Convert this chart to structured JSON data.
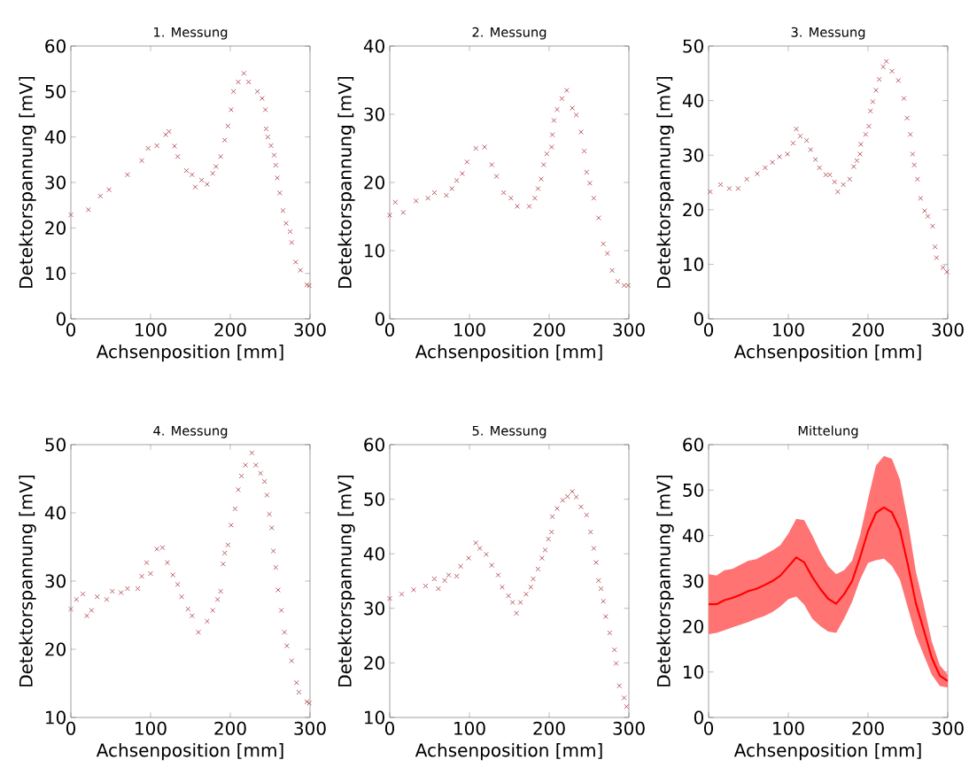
{
  "chart_data": [
    {
      "type": "scatter",
      "title": "1. Messung",
      "xlabel": "Achsenposition [mm]",
      "ylabel": "Detektorspannung [mV]",
      "marker": "cross",
      "xlim": [
        0,
        300
      ],
      "ylim": [
        0,
        60
      ],
      "xticks": [
        0,
        100,
        200,
        300
      ],
      "yticks": [
        0,
        10,
        20,
        30,
        40,
        50,
        60
      ],
      "series": [
        {
          "color": "#b8505a",
          "x": [
            0,
            22,
            37,
            48,
            71,
            89,
            97,
            108,
            119,
            123,
            130,
            134,
            145,
            152,
            156,
            164,
            171,
            178,
            182,
            188,
            193,
            197,
            201,
            204,
            210,
            217,
            223,
            234,
            240,
            244,
            245,
            247,
            251,
            255,
            257,
            259,
            262,
            266,
            270,
            275,
            277,
            282,
            288,
            296,
            299
          ],
          "values": [
            22.9,
            24,
            27,
            28.4,
            31.7,
            34.8,
            37.5,
            38.1,
            40.5,
            41.2,
            38,
            35.7,
            32.6,
            31.7,
            29,
            30.5,
            29.6,
            32,
            33.5,
            35.7,
            39.3,
            42.4,
            46,
            50,
            52.1,
            54,
            52.1,
            50,
            48.5,
            46,
            41.8,
            40,
            38.1,
            36,
            33.8,
            31,
            27.7,
            23.8,
            21,
            19.2,
            16.8,
            12.5,
            10.7,
            7.5,
            7.3
          ]
        }
      ]
    },
    {
      "type": "scatter",
      "title": "2. Messung",
      "xlabel": "Achsenposition [mm]",
      "ylabel": "Detektorspannung [mV]",
      "marker": "cross",
      "xlim": [
        0,
        300
      ],
      "ylim": [
        0,
        40
      ],
      "xticks": [
        0,
        100,
        200,
        300
      ],
      "yticks": [
        0,
        10,
        20,
        30,
        40
      ],
      "series": [
        {
          "color": "#b8505a",
          "x": [
            0,
            7,
            17,
            33,
            48,
            56,
            71,
            78,
            84,
            91,
            97,
            108,
            119,
            128,
            134,
            143,
            152,
            160,
            175,
            182,
            186,
            190,
            193,
            197,
            203,
            204,
            206,
            210,
            216,
            222,
            229,
            234,
            240,
            244,
            247,
            251,
            256,
            262,
            268,
            273,
            279,
            286,
            294,
            299
          ],
          "values": [
            15.2,
            17.1,
            15.6,
            17.3,
            17.7,
            18.5,
            18.1,
            19.1,
            20.3,
            21.3,
            23,
            25,
            25.2,
            22.6,
            20.9,
            18.5,
            17.7,
            16.5,
            16.5,
            17.7,
            19.1,
            20.5,
            22.6,
            24.2,
            25.2,
            27,
            29.1,
            30.7,
            32.3,
            33.5,
            30.9,
            29.9,
            27.4,
            24.6,
            21.5,
            19.9,
            17.7,
            14.8,
            11,
            9.6,
            7.1,
            5.5,
            4.9,
            4.9
          ]
        }
      ]
    },
    {
      "type": "scatter",
      "title": "3. Messung",
      "xlabel": "Achsenposition [mm]",
      "ylabel": "Detektorspannung [mV]",
      "marker": "cross",
      "xlim": [
        0,
        300
      ],
      "ylim": [
        0,
        50
      ],
      "xticks": [
        0,
        100,
        200,
        300
      ],
      "yticks": [
        0,
        10,
        20,
        30,
        40,
        50
      ],
      "series": [
        {
          "color": "#b8505a",
          "x": [
            2,
            15,
            26,
            37,
            48,
            61,
            71,
            80,
            89,
            99,
            106,
            110,
            115,
            123,
            128,
            134,
            139,
            147,
            152,
            158,
            162,
            169,
            177,
            182,
            186,
            190,
            191,
            197,
            201,
            203,
            206,
            210,
            214,
            219,
            223,
            230,
            238,
            245,
            249,
            253,
            256,
            258,
            262,
            266,
            271,
            275,
            281,
            284,
            286,
            294,
            299
          ],
          "values": [
            23.3,
            24.6,
            23.9,
            23.9,
            25.6,
            26.6,
            27.7,
            28.7,
            29.7,
            30.2,
            32.2,
            34.8,
            33.5,
            32.7,
            31,
            29.2,
            27.7,
            26.4,
            26.4,
            25.1,
            23.3,
            24.6,
            25.6,
            27.9,
            29,
            30.2,
            32,
            33.8,
            35.3,
            38.1,
            39.8,
            41.9,
            43.9,
            46.2,
            47.2,
            45.4,
            43.7,
            40.4,
            36.8,
            33.8,
            30.2,
            28.2,
            25.6,
            22.1,
            19.8,
            18.8,
            17,
            13.2,
            11.2,
            9.4,
            8.6
          ]
        }
      ]
    },
    {
      "type": "scatter",
      "title": "4. Messung",
      "xlabel": "Achsenposition [mm]",
      "ylabel": "Detektorspannung [mV]",
      "marker": "cross",
      "xlim": [
        0,
        300
      ],
      "ylim": [
        10,
        50
      ],
      "xticks": [
        0,
        100,
        200,
        300
      ],
      "yticks": [
        10,
        20,
        30,
        40,
        50
      ],
      "series": [
        {
          "color": "#b8505a",
          "x": [
            0,
            7,
            15,
            20,
            26,
            33,
            45,
            52,
            63,
            71,
            84,
            89,
            95,
            100,
            108,
            115,
            121,
            128,
            134,
            139,
            147,
            152,
            160,
            171,
            178,
            184,
            188,
            191,
            193,
            197,
            201,
            206,
            210,
            214,
            219,
            227,
            232,
            238,
            243,
            246,
            249,
            252,
            254,
            257,
            260,
            264,
            268,
            271,
            277,
            283,
            286,
            296,
            299
          ],
          "values": [
            25.9,
            27.3,
            28.1,
            24.9,
            25.7,
            27.7,
            27.3,
            28.5,
            28.3,
            28.9,
            28.9,
            30.7,
            32.7,
            31.1,
            34.7,
            34.9,
            32.7,
            30.9,
            29.5,
            27.7,
            25.9,
            24.9,
            22.5,
            24.1,
            25.7,
            27.3,
            28.5,
            32.5,
            34.1,
            35.3,
            38.2,
            40.6,
            43.4,
            45.4,
            47,
            48.8,
            47,
            45.8,
            44.6,
            42.6,
            39.8,
            37.8,
            34.4,
            32,
            28.7,
            25.7,
            22.5,
            20.5,
            18.3,
            15.1,
            13.7,
            12.3,
            12.1
          ]
        }
      ]
    },
    {
      "type": "scatter",
      "title": "5. Messung",
      "xlabel": "Achsenposition [mm]",
      "ylabel": "Detektorspannung [mV]",
      "marker": "cross",
      "xlim": [
        0,
        300
      ],
      "ylim": [
        10,
        60
      ],
      "xticks": [
        0,
        100,
        200,
        300
      ],
      "yticks": [
        10,
        20,
        30,
        40,
        50,
        60
      ],
      "series": [
        {
          "color": "#b8505a",
          "x": [
            0,
            15,
            30,
            45,
            56,
            61,
            69,
            74,
            84,
            89,
            99,
            108,
            113,
            121,
            128,
            136,
            141,
            149,
            154,
            159,
            164,
            171,
            177,
            180,
            186,
            191,
            195,
            199,
            203,
            204,
            210,
            217,
            223,
            229,
            234,
            240,
            247,
            252,
            256,
            259,
            262,
            265,
            268,
            271,
            276,
            282,
            284,
            288,
            294,
            297
          ],
          "values": [
            31.8,
            32.6,
            33.4,
            34.1,
            35.4,
            33.6,
            35.1,
            36.1,
            35.9,
            37.7,
            39.2,
            42,
            41,
            39.9,
            37.9,
            36.1,
            33.9,
            32.3,
            31.1,
            29.1,
            31.1,
            32.6,
            33.9,
            35.4,
            37.2,
            39.2,
            40.7,
            42.7,
            44,
            46.8,
            48.3,
            49.8,
            50.5,
            51.4,
            50.4,
            48.6,
            47.1,
            44,
            41,
            38.4,
            35.1,
            33.6,
            31.3,
            28.5,
            25.5,
            22.4,
            19.9,
            15.8,
            13.6,
            12
          ]
        }
      ]
    },
    {
      "type": "line",
      "title": "Mittelung",
      "xlabel": "Achsenposition [mm]",
      "ylabel": "Detektorspannung [mV]",
      "xlim": [
        0,
        300
      ],
      "ylim": [
        0,
        60
      ],
      "xticks": [
        0,
        100,
        200,
        300
      ],
      "yticks": [
        0,
        10,
        20,
        30,
        40,
        50,
        60
      ],
      "series": [
        {
          "color": "#ff0000",
          "x": [
            0,
            10,
            20,
            30,
            40,
            50,
            60,
            70,
            80,
            90,
            100,
            110,
            120,
            130,
            140,
            150,
            160,
            170,
            180,
            190,
            200,
            210,
            220,
            230,
            240,
            250,
            260,
            270,
            280,
            290,
            300
          ],
          "values": [
            24.9,
            24.9,
            25.8,
            26.3,
            27,
            27.8,
            28.3,
            29.1,
            30,
            31.2,
            33.2,
            35.2,
            34.1,
            30.9,
            28.3,
            26.1,
            25,
            27.1,
            30,
            35.2,
            41,
            45,
            46.2,
            45.1,
            41.3,
            33.6,
            25.1,
            19.2,
            13.1,
            9.2,
            8
          ],
          "lower": [
            18.3,
            18.6,
            19.2,
            19.8,
            20.4,
            21,
            21.7,
            22.3,
            23.2,
            24.4,
            26,
            26.6,
            24.8,
            21.7,
            20.1,
            18.9,
            18.6,
            21.7,
            25.4,
            30.3,
            34,
            34.6,
            34.9,
            33.3,
            30.3,
            24.1,
            18,
            13.7,
            9.4,
            6.9,
            6.6
          ],
          "upper": [
            31.5,
            31.2,
            32.4,
            32.7,
            33.6,
            34.5,
            34.8,
            35.8,
            36.7,
            37.9,
            40.4,
            43.7,
            43.4,
            40.1,
            36.4,
            33.3,
            31.5,
            32.4,
            34.5,
            40.1,
            48,
            55.4,
            57.5,
            56.9,
            52.3,
            43.1,
            32.1,
            24.7,
            16.7,
            11.5,
            9.4
          ]
        }
      ]
    }
  ]
}
